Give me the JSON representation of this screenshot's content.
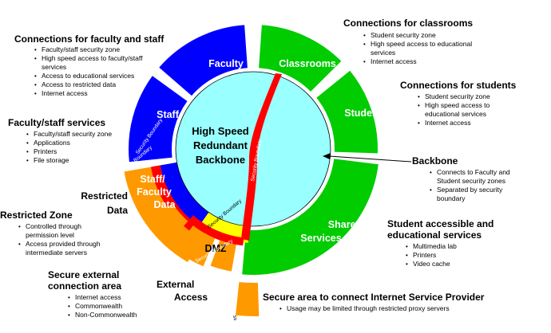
{
  "colors": {
    "core": "#99ffff",
    "faculty": "#0000ff",
    "student": "#00cc00",
    "restricted": "#ff9900",
    "boundary": "#ff0000",
    "dmz": "#ffff00"
  },
  "center": {
    "line1": "High Speed",
    "line2": "Redundant",
    "line3": "Backbone"
  },
  "segments": {
    "faculty": "Faculty",
    "classrooms": "Classrooms",
    "students": "Students",
    "staff": "Staff",
    "staff_faculty_line1": "Staff/",
    "staff_faculty_line2": "Faculty",
    "staff_faculty_line3": "Data",
    "shared_line1": "Shared",
    "shared_line2": "Services",
    "dmz": "DMZ",
    "restricted_line1": "Restricted",
    "restricted_line2": "Data",
    "external_line1": "External",
    "external_line2": "Access",
    "security_boundary": "Security Boundary",
    "ext_fragment": "ss"
  },
  "blocks": {
    "faculty_staff": {
      "title": "Connections for faculty and staff",
      "items": [
        "Faculty/staff security zone",
        "High speed access to faculty/staff",
        "services",
        "Access to educational services",
        "Access to restricted data",
        "Internet access"
      ]
    },
    "classrooms": {
      "title": "Connections for classrooms",
      "items": [
        "Student security zone",
        "High speed access to educational",
        "services",
        "Internet access"
      ]
    },
    "students": {
      "title": "Connections for students",
      "items": [
        "Student security zone",
        "High speed access to",
        "educational services",
        "Internet access"
      ]
    },
    "faculty_staff_services": {
      "title": "Faculty/staff services",
      "items": [
        "Faculty/staff security zone",
        "Applications",
        "Printers",
        "File storage"
      ]
    },
    "backbone": {
      "title": "Backbone",
      "items": [
        "Connects to Faculty and",
        "Student security zones",
        "Separated by security",
        "boundary"
      ]
    },
    "restricted_zone": {
      "title": "Restricted Zone",
      "items": [
        "Controlled through",
        "permission level",
        "Access provided through",
        "intermediate servers"
      ]
    },
    "student_services": {
      "title_line1": "Student accessible and",
      "title_line2": "educational services",
      "items": [
        "Multimedia lab",
        "Printers",
        "Video cache"
      ]
    },
    "secure_external": {
      "title_line1": "Secure external",
      "title_line2": "connection area",
      "items": [
        "Internet access",
        "Commonwealth",
        "Non-Commonwealth"
      ]
    },
    "isp": {
      "title": "Secure area to connect Internet Service Provider",
      "items": [
        "Usage may be limited through restricted proxy servers"
      ]
    }
  }
}
